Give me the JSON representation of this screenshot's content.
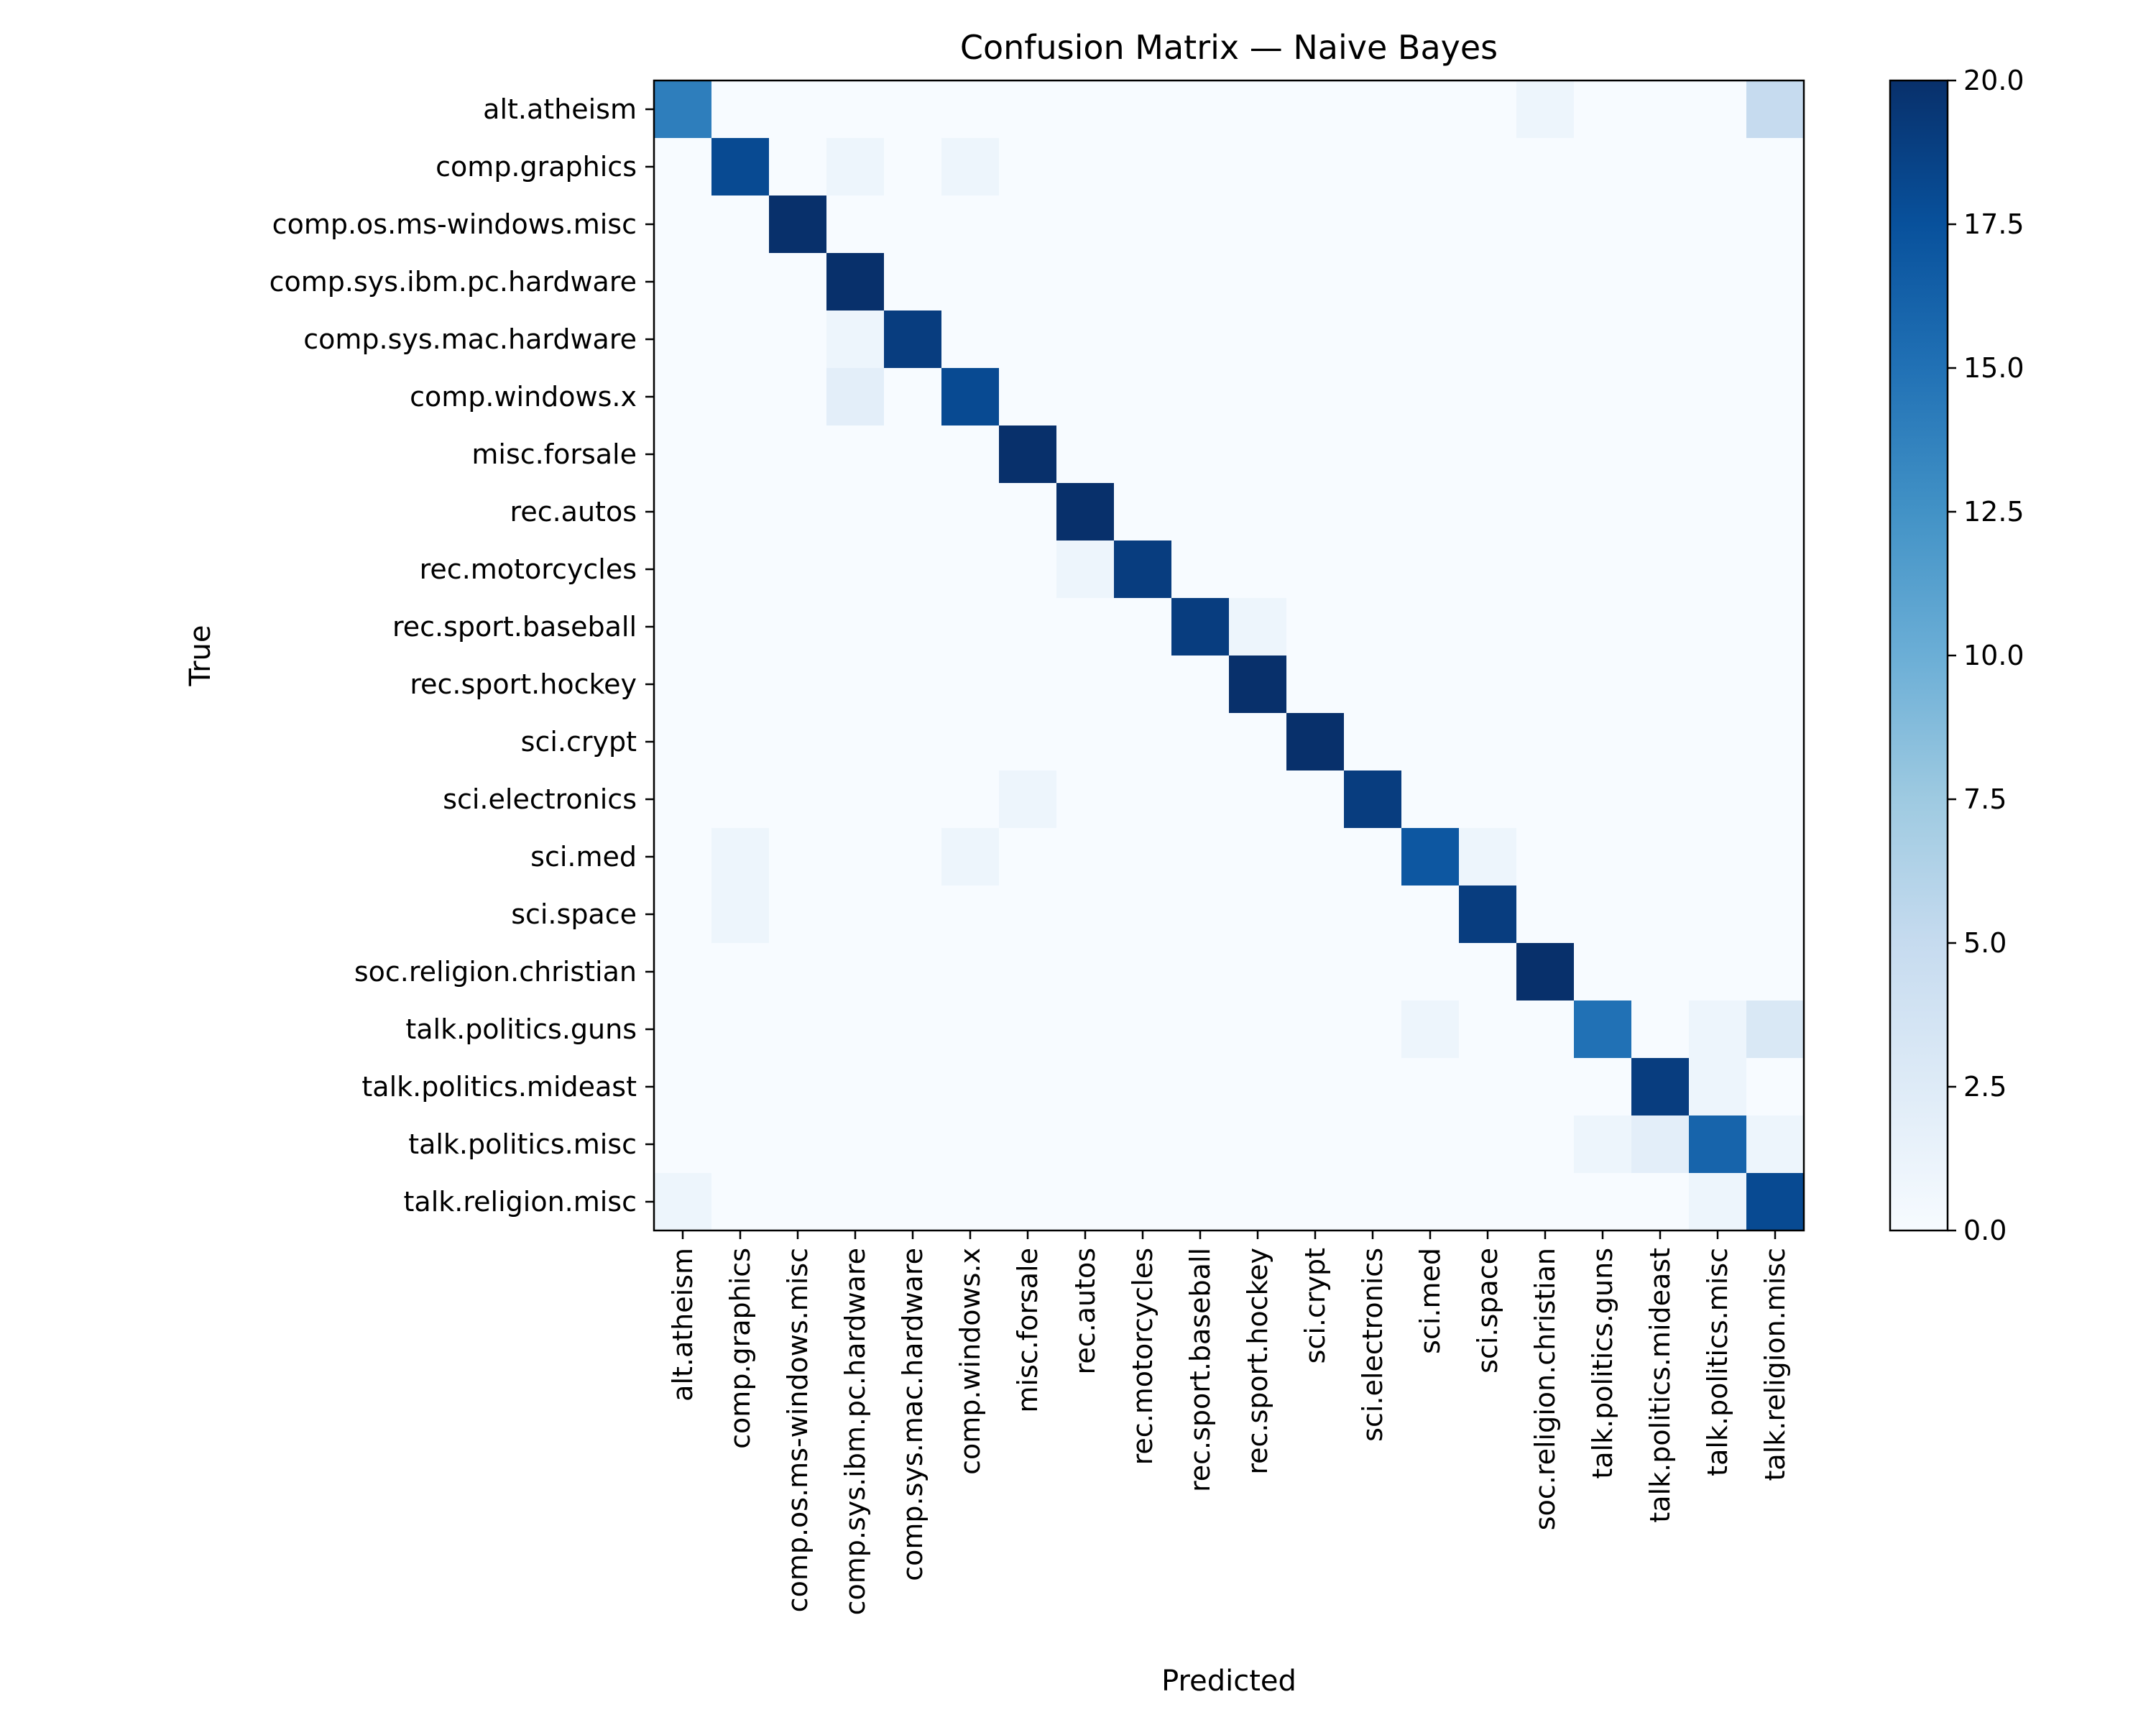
{
  "chart_data": {
    "type": "heatmap",
    "title": "Confusion Matrix — Naive Bayes",
    "xlabel": "Predicted",
    "ylabel": "True",
    "categories": [
      "alt.atheism",
      "comp.graphics",
      "comp.os.ms-windows.misc",
      "comp.sys.ibm.pc.hardware",
      "comp.sys.mac.hardware",
      "comp.windows.x",
      "misc.forsale",
      "rec.autos",
      "rec.motorcycles",
      "rec.sport.baseball",
      "rec.sport.hockey",
      "sci.crypt",
      "sci.electronics",
      "sci.med",
      "sci.space",
      "soc.religion.christian",
      "talk.politics.guns",
      "talk.politics.mideast",
      "talk.politics.misc",
      "talk.religion.misc"
    ],
    "matrix": [
      [
        14,
        0,
        0,
        0,
        0,
        0,
        0,
        0,
        0,
        0,
        0,
        0,
        0,
        0,
        0,
        1,
        0,
        0,
        0,
        5
      ],
      [
        0,
        18,
        0,
        1,
        0,
        1,
        0,
        0,
        0,
        0,
        0,
        0,
        0,
        0,
        0,
        0,
        0,
        0,
        0,
        0
      ],
      [
        0,
        0,
        20,
        0,
        0,
        0,
        0,
        0,
        0,
        0,
        0,
        0,
        0,
        0,
        0,
        0,
        0,
        0,
        0,
        0
      ],
      [
        0,
        0,
        0,
        20,
        0,
        0,
        0,
        0,
        0,
        0,
        0,
        0,
        0,
        0,
        0,
        0,
        0,
        0,
        0,
        0
      ],
      [
        0,
        0,
        0,
        1,
        19,
        0,
        0,
        0,
        0,
        0,
        0,
        0,
        0,
        0,
        0,
        0,
        0,
        0,
        0,
        0
      ],
      [
        0,
        0,
        0,
        2,
        0,
        18,
        0,
        0,
        0,
        0,
        0,
        0,
        0,
        0,
        0,
        0,
        0,
        0,
        0,
        0
      ],
      [
        0,
        0,
        0,
        0,
        0,
        0,
        20,
        0,
        0,
        0,
        0,
        0,
        0,
        0,
        0,
        0,
        0,
        0,
        0,
        0
      ],
      [
        0,
        0,
        0,
        0,
        0,
        0,
        0,
        20,
        0,
        0,
        0,
        0,
        0,
        0,
        0,
        0,
        0,
        0,
        0,
        0
      ],
      [
        0,
        0,
        0,
        0,
        0,
        0,
        0,
        1,
        19,
        0,
        0,
        0,
        0,
        0,
        0,
        0,
        0,
        0,
        0,
        0
      ],
      [
        0,
        0,
        0,
        0,
        0,
        0,
        0,
        0,
        0,
        19,
        1,
        0,
        0,
        0,
        0,
        0,
        0,
        0,
        0,
        0
      ],
      [
        0,
        0,
        0,
        0,
        0,
        0,
        0,
        0,
        0,
        0,
        20,
        0,
        0,
        0,
        0,
        0,
        0,
        0,
        0,
        0
      ],
      [
        0,
        0,
        0,
        0,
        0,
        0,
        0,
        0,
        0,
        0,
        0,
        20,
        0,
        0,
        0,
        0,
        0,
        0,
        0,
        0
      ],
      [
        0,
        0,
        0,
        0,
        0,
        0,
        1,
        0,
        0,
        0,
        0,
        0,
        19,
        0,
        0,
        0,
        0,
        0,
        0,
        0
      ],
      [
        0,
        1,
        0,
        0,
        0,
        1,
        0,
        0,
        0,
        0,
        0,
        0,
        0,
        17,
        1,
        0,
        0,
        0,
        0,
        0
      ],
      [
        0,
        1,
        0,
        0,
        0,
        0,
        0,
        0,
        0,
        0,
        0,
        0,
        0,
        0,
        19,
        0,
        0,
        0,
        0,
        0
      ],
      [
        0,
        0,
        0,
        0,
        0,
        0,
        0,
        0,
        0,
        0,
        0,
        0,
        0,
        0,
        0,
        20,
        0,
        0,
        0,
        0
      ],
      [
        0,
        0,
        0,
        0,
        0,
        0,
        0,
        0,
        0,
        0,
        0,
        0,
        0,
        1,
        0,
        0,
        15,
        0,
        1,
        3
      ],
      [
        0,
        0,
        0,
        0,
        0,
        0,
        0,
        0,
        0,
        0,
        0,
        0,
        0,
        0,
        0,
        0,
        0,
        19,
        1,
        0
      ],
      [
        0,
        0,
        0,
        0,
        0,
        0,
        0,
        0,
        0,
        0,
        0,
        0,
        0,
        0,
        0,
        0,
        1,
        2,
        16,
        1
      ],
      [
        1,
        0,
        0,
        0,
        0,
        0,
        0,
        0,
        0,
        0,
        0,
        0,
        0,
        0,
        0,
        0,
        0,
        0,
        1,
        18
      ]
    ],
    "colorbar": {
      "colormap": "Blues",
      "vmin": 0,
      "vmax": 20,
      "ticks": [
        "0.0",
        "2.5",
        "5.0",
        "7.5",
        "10.0",
        "12.5",
        "15.0",
        "17.5",
        "20.0"
      ]
    },
    "grid": false,
    "annotations": false
  }
}
